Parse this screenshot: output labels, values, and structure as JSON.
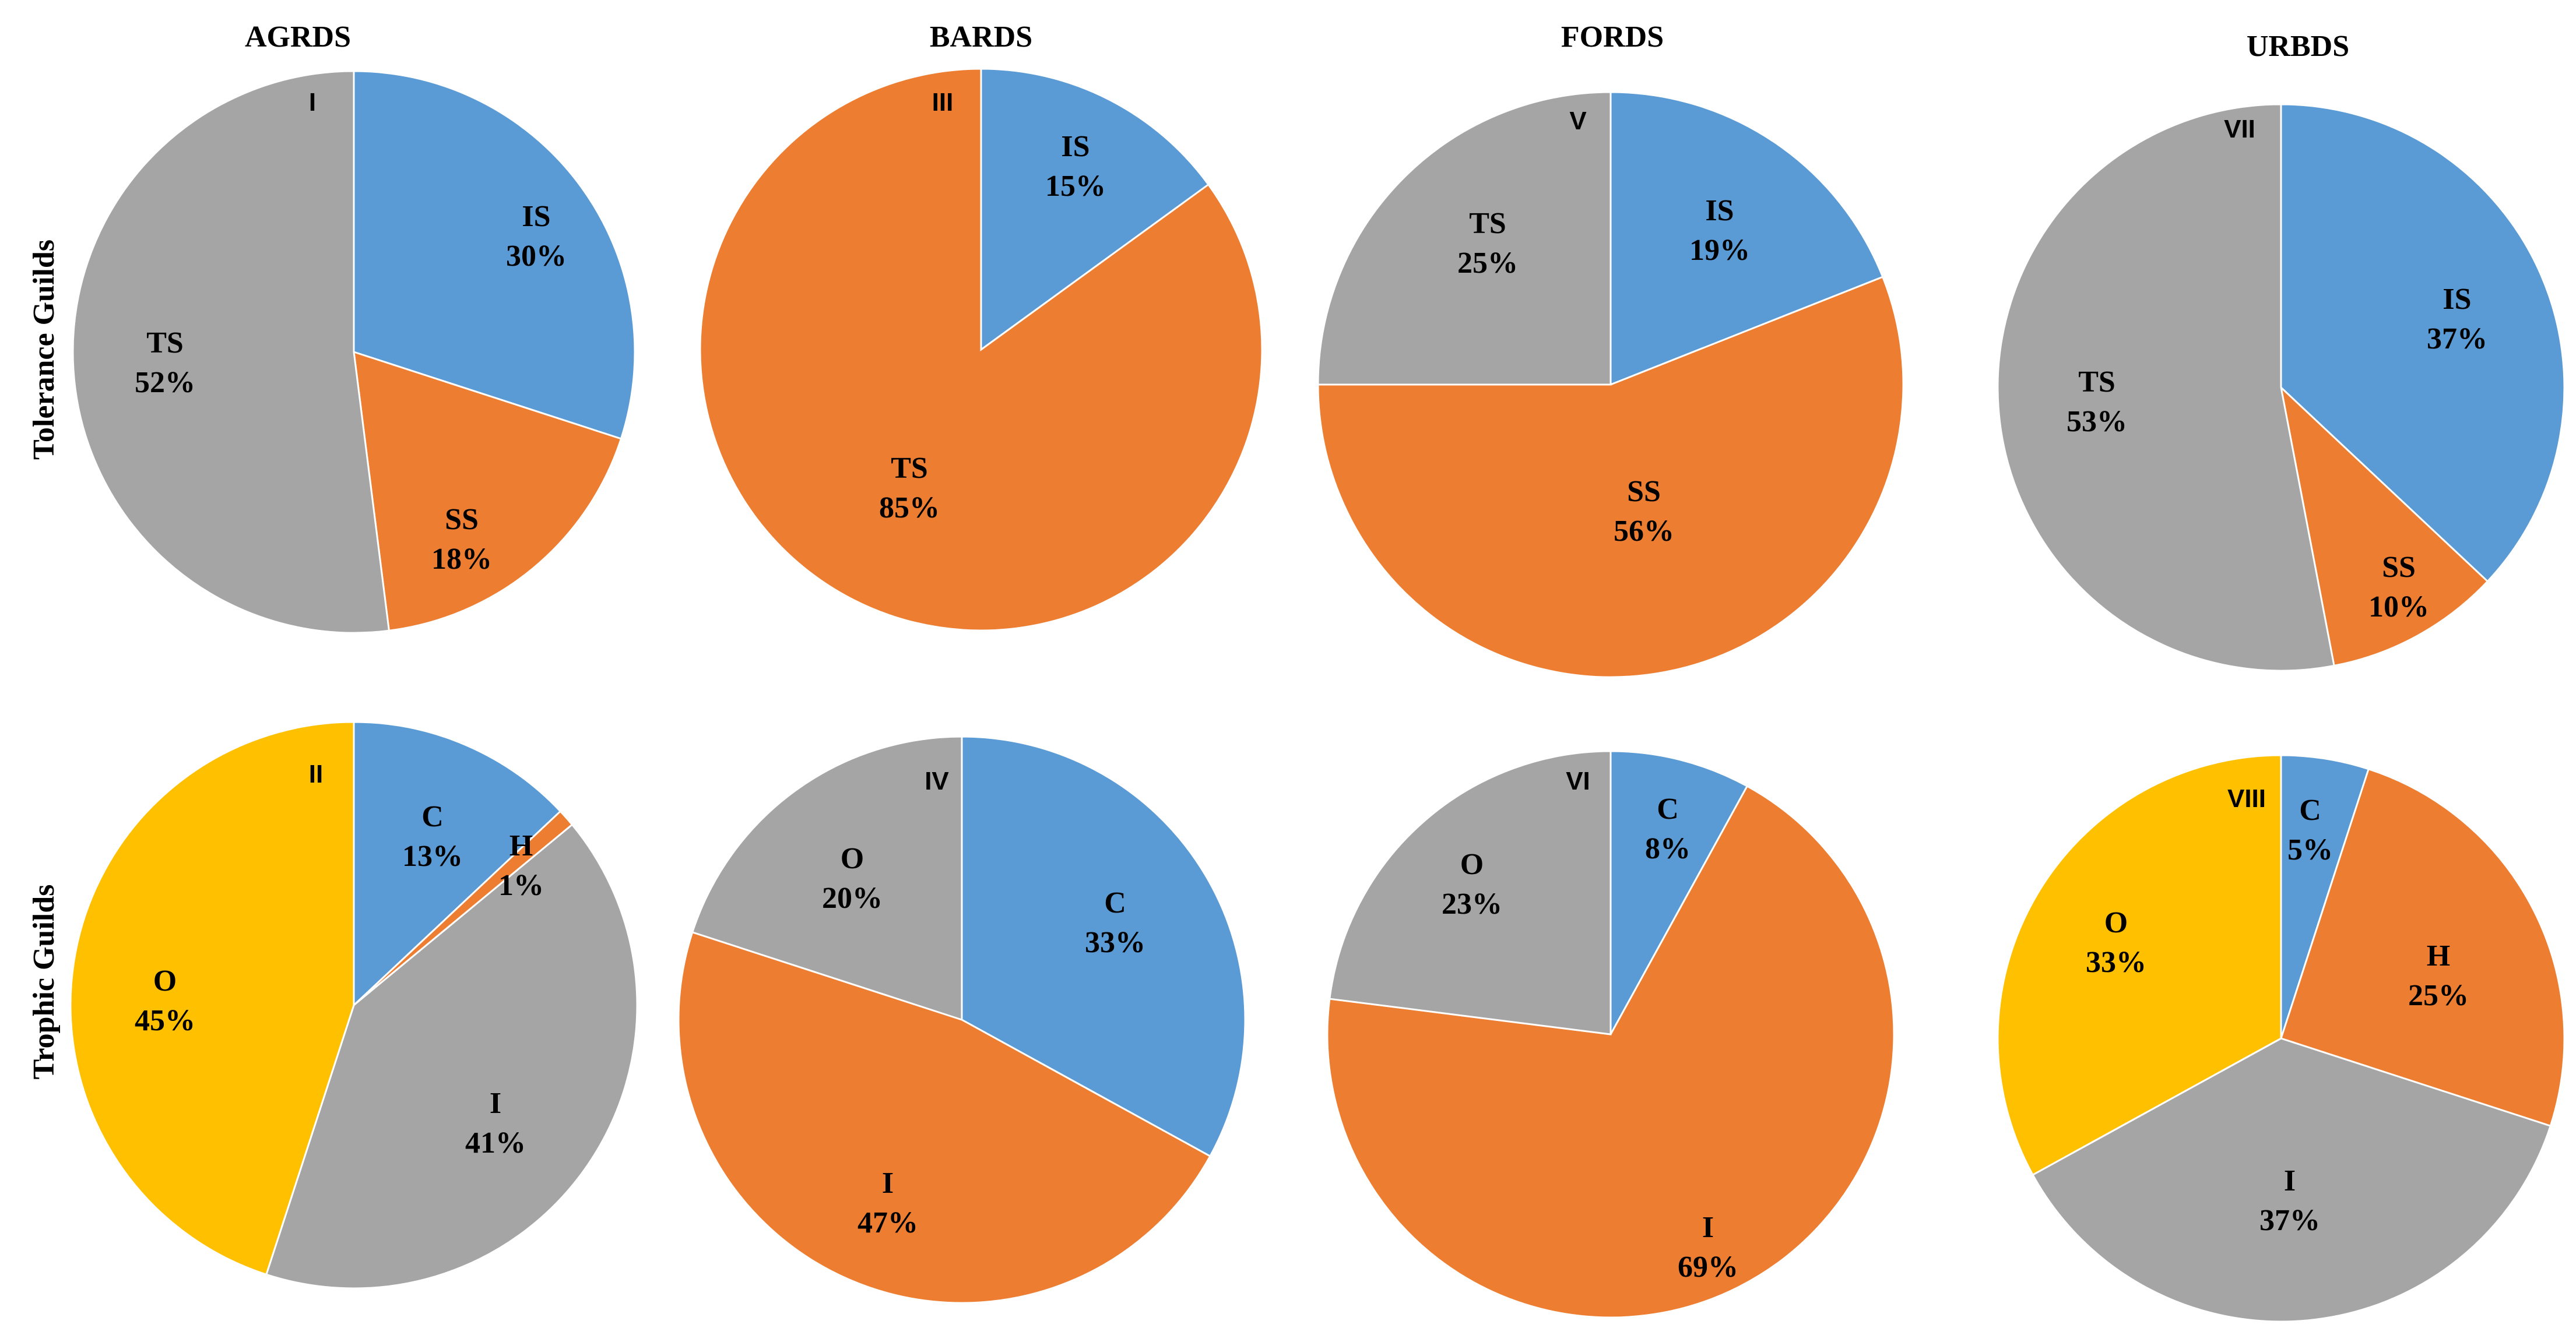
{
  "columns": [
    "AGRDS",
    "BARDS",
    "FORDS",
    "URBDS"
  ],
  "rows": [
    "Tolerance Guilds",
    "Trophic Guilds"
  ],
  "colors": {
    "blue": "#5B9BD5",
    "orange": "#ED7D31",
    "gray": "#A5A5A5",
    "yellow": "#FFC000"
  },
  "chart_data": [
    {
      "type": "pie",
      "column": "AGRDS",
      "row": "Tolerance Guilds",
      "panel": "I",
      "slices": [
        {
          "category": "IS",
          "value": 30,
          "label": "30%",
          "color": "#5B9BD5"
        },
        {
          "category": "SS",
          "value": 18,
          "label": "18%",
          "color": "#ED7D31"
        },
        {
          "category": "TS",
          "value": 52,
          "label": "52%",
          "color": "#A5A5A5"
        }
      ]
    },
    {
      "type": "pie",
      "column": "BARDS",
      "row": "Tolerance Guilds",
      "panel": "III",
      "slices": [
        {
          "category": "IS",
          "value": 15,
          "label": "15%",
          "color": "#5B9BD5"
        },
        {
          "category": "TS",
          "value": 85,
          "label": "85%",
          "color": "#ED7D31"
        }
      ]
    },
    {
      "type": "pie",
      "column": "FORDS",
      "row": "Tolerance Guilds",
      "panel": "V",
      "slices": [
        {
          "category": "IS",
          "value": 19,
          "label": "19%",
          "color": "#5B9BD5"
        },
        {
          "category": "SS",
          "value": 56,
          "label": "56%",
          "color": "#ED7D31"
        },
        {
          "category": "TS",
          "value": 25,
          "label": "25%",
          "color": "#A5A5A5"
        }
      ]
    },
    {
      "type": "pie",
      "column": "URBDS",
      "row": "Tolerance Guilds",
      "panel": "VII",
      "slices": [
        {
          "category": "IS",
          "value": 37,
          "label": "37%",
          "color": "#5B9BD5"
        },
        {
          "category": "SS",
          "value": 10,
          "label": "10%",
          "color": "#ED7D31"
        },
        {
          "category": "TS",
          "value": 53,
          "label": "53%",
          "color": "#A5A5A5"
        }
      ]
    },
    {
      "type": "pie",
      "column": "AGRDS",
      "row": "Trophic Guilds",
      "panel": "II",
      "slices": [
        {
          "category": "C",
          "value": 13,
          "label": "13%",
          "color": "#5B9BD5"
        },
        {
          "category": "H",
          "value": 1,
          "label": "1%",
          "color": "#ED7D31"
        },
        {
          "category": "I",
          "value": 41,
          "label": "41%",
          "color": "#A5A5A5"
        },
        {
          "category": "O",
          "value": 45,
          "label": "45%",
          "color": "#FFC000"
        }
      ]
    },
    {
      "type": "pie",
      "column": "BARDS",
      "row": "Trophic Guilds",
      "panel": "IV",
      "slices": [
        {
          "category": "C",
          "value": 33,
          "label": "33%",
          "color": "#5B9BD5"
        },
        {
          "category": "I",
          "value": 47,
          "label": "47%",
          "color": "#ED7D31"
        },
        {
          "category": "O",
          "value": 20,
          "label": "20%",
          "color": "#A5A5A5"
        }
      ]
    },
    {
      "type": "pie",
      "column": "FORDS",
      "row": "Trophic Guilds",
      "panel": "VI",
      "slices": [
        {
          "category": "C",
          "value": 8,
          "label": "8%",
          "color": "#5B9BD5"
        },
        {
          "category": "I",
          "value": 69,
          "label": "69%",
          "color": "#ED7D31"
        },
        {
          "category": "O",
          "value": 23,
          "label": "23%",
          "color": "#A5A5A5"
        }
      ]
    },
    {
      "type": "pie",
      "column": "URBDS",
      "row": "Trophic Guilds",
      "panel": "VIII",
      "slices": [
        {
          "category": "C",
          "value": 5,
          "label": "5%",
          "color": "#5B9BD5"
        },
        {
          "category": "H",
          "value": 25,
          "label": "25%",
          "color": "#ED7D31"
        },
        {
          "category": "I",
          "value": 37,
          "label": "37%",
          "color": "#A5A5A5"
        },
        {
          "category": "O",
          "value": 33,
          "label": "33%",
          "color": "#FFC000"
        }
      ]
    }
  ]
}
